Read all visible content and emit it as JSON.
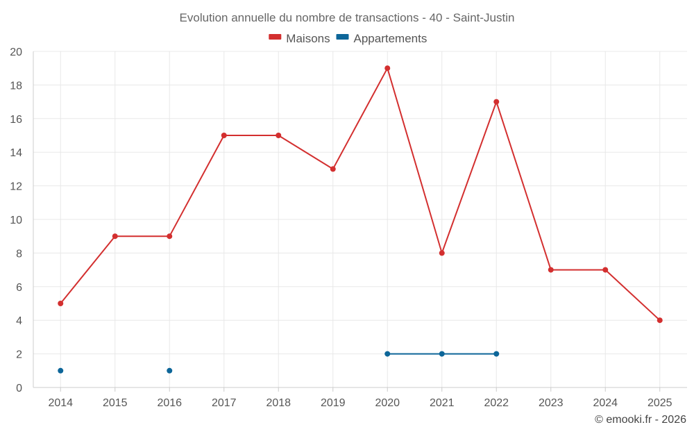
{
  "chart_data": {
    "type": "line",
    "title": "Evolution annuelle du nombre de transactions - 40 - Saint-Justin",
    "categories": [
      "2014",
      "2015",
      "2016",
      "2017",
      "2018",
      "2019",
      "2020",
      "2021",
      "2022",
      "2023",
      "2024",
      "2025"
    ],
    "series": [
      {
        "name": "Maisons",
        "color": "#d32f2f",
        "values": [
          5,
          9,
          9,
          15,
          15,
          13,
          19,
          8,
          17,
          7,
          7,
          4
        ]
      },
      {
        "name": "Appartements",
        "color": "#0d6699",
        "values": [
          1,
          null,
          1,
          null,
          null,
          null,
          2,
          2,
          2,
          null,
          null,
          null
        ]
      }
    ],
    "ylim": [
      0,
      20
    ],
    "yticks": [
      0,
      2,
      4,
      6,
      8,
      10,
      12,
      14,
      16,
      18,
      20
    ],
    "grid": true,
    "legend": "top-center"
  },
  "credit": "© emooki.fr - 2026"
}
